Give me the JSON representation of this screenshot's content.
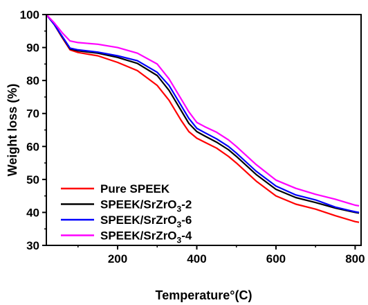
{
  "chart_data": {
    "type": "line",
    "title": "",
    "xlabel": "Temperature°(C)",
    "ylabel": "Weight loss (%)",
    "xlim": [
      20,
      815
    ],
    "ylim": [
      30,
      100
    ],
    "xticks": [
      200,
      400,
      600,
      800
    ],
    "yticks": [
      30,
      40,
      50,
      60,
      70,
      80,
      90,
      100
    ],
    "grid": false,
    "legend_position": "bottom-left",
    "series": [
      {
        "name": "Pure SPEEK",
        "name_main": "Pure SPEEK",
        "name_sub": "",
        "name_suffix": "",
        "color": "#ff0000",
        "x": [
          20,
          40,
          60,
          80,
          100,
          150,
          200,
          250,
          300,
          330,
          360,
          380,
          400,
          420,
          450,
          480,
          500,
          550,
          600,
          650,
          700,
          750,
          800,
          810
        ],
        "y": [
          100,
          97,
          93,
          89.3,
          88.5,
          87.5,
          85.5,
          83,
          78.5,
          74,
          68,
          64.5,
          62.5,
          61.3,
          59.5,
          57,
          55,
          49.5,
          45,
          42.5,
          41,
          39,
          37.2,
          37
        ]
      },
      {
        "name": "SPEEK/SrZrO3-2",
        "name_main": "SPEEK/SrZrO",
        "name_sub": "3",
        "name_suffix": "-2",
        "color": "#000000",
        "x": [
          20,
          40,
          60,
          80,
          100,
          150,
          200,
          250,
          300,
          330,
          360,
          380,
          400,
          420,
          450,
          480,
          500,
          550,
          600,
          650,
          700,
          750,
          800,
          810
        ],
        "y": [
          100,
          97,
          93.2,
          89.6,
          89,
          88.3,
          87,
          85.2,
          81.5,
          77,
          71,
          67,
          64.5,
          63.2,
          61.3,
          59,
          57,
          51.5,
          47,
          44.5,
          43,
          41.3,
          40,
          39.8
        ]
      },
      {
        "name": "SPEEK/SrZrO3-6",
        "name_main": "SPEEK/SrZrO",
        "name_sub": "3",
        "name_suffix": "-6",
        "color": "#0000ff",
        "x": [
          20,
          40,
          60,
          80,
          100,
          150,
          200,
          250,
          300,
          330,
          360,
          380,
          400,
          420,
          450,
          480,
          500,
          550,
          600,
          650,
          700,
          750,
          800,
          810
        ],
        "y": [
          100,
          97,
          93.4,
          89.8,
          89.3,
          88.6,
          87.5,
          86,
          82.5,
          78.5,
          72.5,
          68.5,
          65.5,
          64.2,
          62.3,
          60,
          58,
          52.5,
          48,
          45.3,
          43.8,
          41.6,
          40.2,
          40
        ]
      },
      {
        "name": "SPEEK/SrZrO3-4",
        "name_main": "SPEEK/SrZrO",
        "name_sub": "3",
        "name_suffix": "-4",
        "color": "#ff00ff",
        "x": [
          20,
          40,
          60,
          80,
          100,
          150,
          200,
          250,
          300,
          330,
          360,
          380,
          400,
          420,
          450,
          480,
          500,
          550,
          600,
          650,
          700,
          750,
          800,
          810
        ],
        "y": [
          100,
          97.5,
          94.5,
          92,
          91.5,
          91,
          90,
          88.3,
          85,
          80.5,
          74.5,
          70.5,
          67.3,
          66,
          64.3,
          62,
          60,
          54.5,
          49.8,
          47.3,
          45.5,
          44,
          42.2,
          42
        ]
      }
    ]
  }
}
